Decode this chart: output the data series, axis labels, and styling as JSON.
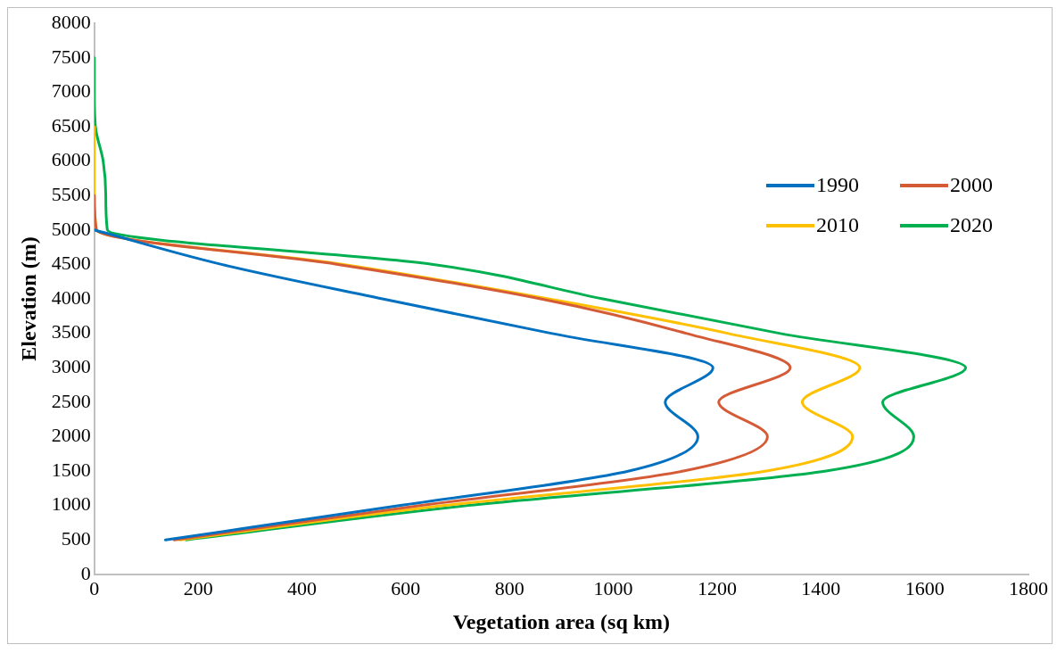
{
  "chart_data": {
    "type": "line",
    "xlabel": "Vegetation area (sq km)",
    "ylabel": "Elevation (m)",
    "xlim": [
      0,
      1800
    ],
    "xticks": [
      0,
      200,
      400,
      600,
      800,
      1000,
      1200,
      1400,
      1600,
      1800
    ],
    "ylim": [
      0,
      8000
    ],
    "yticks": [
      0,
      500,
      1000,
      1500,
      2000,
      2500,
      3000,
      3500,
      4000,
      4500,
      5000,
      5500,
      6000,
      6500,
      7000,
      7500,
      8000
    ],
    "grid": false,
    "legend": "right",
    "marker": "none",
    "line_style": "solid",
    "series": [
      {
        "name": "1990",
        "color": "#0070c0",
        "x": [
          137,
          590,
          1030,
          1163,
          1100,
          1192,
          880,
          555,
          245,
          0
        ],
        "values": [
          500,
          1000,
          1500,
          2000,
          2500,
          3000,
          3500,
          4000,
          4500,
          5000
        ]
      },
      {
        "name": "2000",
        "color": "#d55b36",
        "x": [
          154,
          630,
          1135,
          1297,
          1203,
          1341,
          1140,
          860,
          469,
          4,
          0
        ],
        "values": [
          500,
          1000,
          1500,
          2000,
          2500,
          3000,
          3500,
          4000,
          4500,
          5000,
          5500
        ]
      },
      {
        "name": "2010",
        "color": "#ffc000",
        "x": [
          165,
          675,
          1295,
          1461,
          1364,
          1475,
          1220,
          875,
          480,
          4,
          0,
          0,
          0
        ],
        "values": [
          500,
          1000,
          1500,
          2000,
          2500,
          3000,
          3500,
          4000,
          4500,
          5000,
          5500,
          6000,
          6500
        ]
      },
      {
        "name": "2020",
        "color": "#00b050",
        "x": [
          177,
          721,
          1410,
          1579,
          1519,
          1679,
          1320,
          980,
          653,
          25,
          22,
          17,
          2,
          0,
          0
        ],
        "values": [
          500,
          1000,
          1500,
          2000,
          2500,
          3000,
          3500,
          4000,
          4500,
          5000,
          5500,
          6000,
          6500,
          7000,
          7500
        ]
      }
    ]
  }
}
